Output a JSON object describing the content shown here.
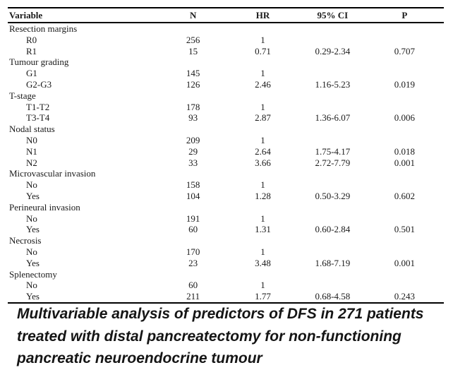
{
  "table": {
    "columns": [
      "Variable",
      "N",
      "HR",
      "95% CI",
      "P"
    ],
    "rows": [
      {
        "variable": "Resection margins",
        "indent": false,
        "n": "",
        "hr": "",
        "ci": "",
        "p": ""
      },
      {
        "variable": "R0",
        "indent": true,
        "n": "256",
        "hr": "1",
        "ci": "",
        "p": ""
      },
      {
        "variable": "R1",
        "indent": true,
        "n": "15",
        "hr": "0.71",
        "ci": "0.29-2.34",
        "p": "0.707"
      },
      {
        "variable": "Tumour grading",
        "indent": false,
        "n": "",
        "hr": "",
        "ci": "",
        "p": ""
      },
      {
        "variable": "G1",
        "indent": true,
        "n": "145",
        "hr": "1",
        "ci": "",
        "p": ""
      },
      {
        "variable": "G2-G3",
        "indent": true,
        "n": "126",
        "hr": "2.46",
        "ci": "1.16-5.23",
        "p": "0.019"
      },
      {
        "variable": "T-stage",
        "indent": false,
        "n": "",
        "hr": "",
        "ci": "",
        "p": ""
      },
      {
        "variable": "T1-T2",
        "indent": true,
        "n": "178",
        "hr": "1",
        "ci": "",
        "p": ""
      },
      {
        "variable": "T3-T4",
        "indent": true,
        "n": "93",
        "hr": "2.87",
        "ci": "1.36-6.07",
        "p": "0.006"
      },
      {
        "variable": "Nodal status",
        "indent": false,
        "n": "",
        "hr": "",
        "ci": "",
        "p": ""
      },
      {
        "variable": "N0",
        "indent": true,
        "n": "209",
        "hr": "1",
        "ci": "",
        "p": ""
      },
      {
        "variable": "N1",
        "indent": true,
        "n": "29",
        "hr": "2.64",
        "ci": "1.75-4.17",
        "p": "0.018"
      },
      {
        "variable": "N2",
        "indent": true,
        "n": "33",
        "hr": "3.66",
        "ci": "2.72-7.79",
        "p": "0.001"
      },
      {
        "variable": "Microvascular invasion",
        "indent": false,
        "n": "",
        "hr": "",
        "ci": "",
        "p": ""
      },
      {
        "variable": "No",
        "indent": true,
        "n": "158",
        "hr": "1",
        "ci": "",
        "p": ""
      },
      {
        "variable": "Yes",
        "indent": true,
        "n": "104",
        "hr": "1.28",
        "ci": "0.50-3.29",
        "p": "0.602"
      },
      {
        "variable": "Perineural invasion",
        "indent": false,
        "n": "",
        "hr": "",
        "ci": "",
        "p": ""
      },
      {
        "variable": "No",
        "indent": true,
        "n": "191",
        "hr": "1",
        "ci": "",
        "p": ""
      },
      {
        "variable": "Yes",
        "indent": true,
        "n": "60",
        "hr": "1.31",
        "ci": "0.60-2.84",
        "p": "0.501"
      },
      {
        "variable": "Necrosis",
        "indent": false,
        "n": "",
        "hr": "",
        "ci": "",
        "p": ""
      },
      {
        "variable": "No",
        "indent": true,
        "n": "170",
        "hr": "1",
        "ci": "",
        "p": ""
      },
      {
        "variable": "Yes",
        "indent": true,
        "n": "23",
        "hr": "3.48",
        "ci": "1.68-7.19",
        "p": "0.001"
      },
      {
        "variable": "Splenectomy",
        "indent": false,
        "n": "",
        "hr": "",
        "ci": "",
        "p": ""
      },
      {
        "variable": "No",
        "indent": true,
        "n": "60",
        "hr": "1",
        "ci": "",
        "p": ""
      },
      {
        "variable": "Yes",
        "indent": true,
        "n": "211",
        "hr": "1.77",
        "ci": "0.68-4.58",
        "p": "0.243"
      }
    ]
  },
  "caption": {
    "lines": [
      "Multivariable analysis of predictors of DFS in 271 patients",
      "treated with distal pancreatectomy for non-functioning",
      "pancreatic neuroendocrine tumour"
    ]
  },
  "chart_data": {
    "type": "table",
    "title": "Multivariable analysis of predictors of DFS in 271 patients treated with distal pancreatectomy for non-functioning pancreatic neuroendocrine tumour",
    "columns": [
      "Variable",
      "N",
      "HR",
      "95% CI",
      "P"
    ],
    "groups": [
      {
        "group": "Resection margins",
        "levels": [
          {
            "level": "R0",
            "N": 256,
            "HR": 1
          },
          {
            "level": "R1",
            "N": 15,
            "HR": 0.71,
            "CI": "0.29-2.34",
            "P": 0.707
          }
        ]
      },
      {
        "group": "Tumour grading",
        "levels": [
          {
            "level": "G1",
            "N": 145,
            "HR": 1
          },
          {
            "level": "G2-G3",
            "N": 126,
            "HR": 2.46,
            "CI": "1.16-5.23",
            "P": 0.019
          }
        ]
      },
      {
        "group": "T-stage",
        "levels": [
          {
            "level": "T1-T2",
            "N": 178,
            "HR": 1
          },
          {
            "level": "T3-T4",
            "N": 93,
            "HR": 2.87,
            "CI": "1.36-6.07",
            "P": 0.006
          }
        ]
      },
      {
        "group": "Nodal status",
        "levels": [
          {
            "level": "N0",
            "N": 209,
            "HR": 1
          },
          {
            "level": "N1",
            "N": 29,
            "HR": 2.64,
            "CI": "1.75-4.17",
            "P": 0.018
          },
          {
            "level": "N2",
            "N": 33,
            "HR": 3.66,
            "CI": "2.72-7.79",
            "P": 0.001
          }
        ]
      },
      {
        "group": "Microvascular invasion",
        "levels": [
          {
            "level": "No",
            "N": 158,
            "HR": 1
          },
          {
            "level": "Yes",
            "N": 104,
            "HR": 1.28,
            "CI": "0.50-3.29",
            "P": 0.602
          }
        ]
      },
      {
        "group": "Perineural invasion",
        "levels": [
          {
            "level": "No",
            "N": 191,
            "HR": 1
          },
          {
            "level": "Yes",
            "N": 60,
            "HR": 1.31,
            "CI": "0.60-2.84",
            "P": 0.501
          }
        ]
      },
      {
        "group": "Necrosis",
        "levels": [
          {
            "level": "No",
            "N": 170,
            "HR": 1
          },
          {
            "level": "Yes",
            "N": 23,
            "HR": 3.48,
            "CI": "1.68-7.19",
            "P": 0.001
          }
        ]
      },
      {
        "group": "Splenectomy",
        "levels": [
          {
            "level": "No",
            "N": 60,
            "HR": 1
          },
          {
            "level": "Yes",
            "N": 211,
            "HR": 1.77,
            "CI": "0.68-4.58",
            "P": 0.243
          }
        ]
      }
    ]
  }
}
